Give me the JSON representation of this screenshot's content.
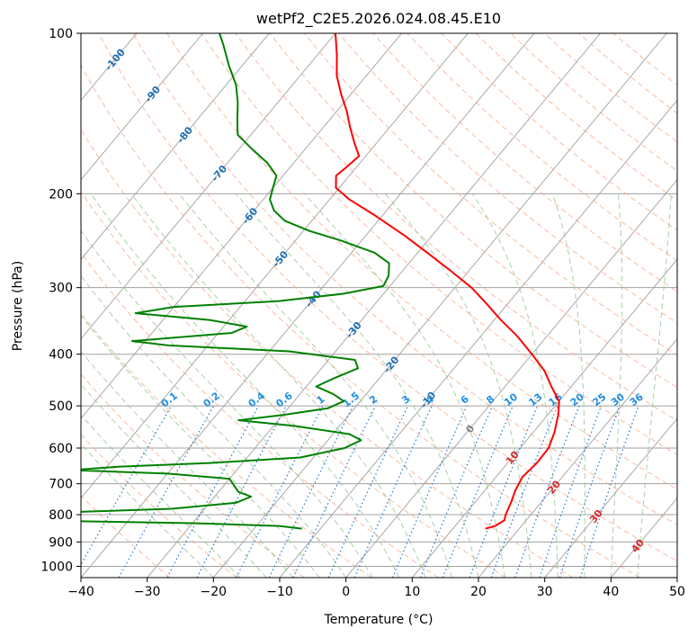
{
  "chart_data": {
    "type": "skew-t",
    "title": "wetPf2_C2E5.2026.024.08.45.E10",
    "xlabel": "Temperature (°C)",
    "ylabel": "Pressure (hPa)",
    "xlim": [
      -40,
      50
    ],
    "ylim": [
      1050,
      100
    ],
    "y_scale": "log",
    "grid": true,
    "x_ticks": [
      "−40",
      "−30",
      "−20",
      "−10",
      "0",
      "10",
      "20",
      "30",
      "40",
      "50"
    ],
    "y_ticks": [
      {
        "p": 100,
        "label": "100"
      },
      {
        "p": 200,
        "label": "200"
      },
      {
        "p": 300,
        "label": "300"
      },
      {
        "p": 400,
        "label": "400"
      },
      {
        "p": 500,
        "label": "500"
      },
      {
        "p": 600,
        "label": "600"
      },
      {
        "p": 700,
        "label": "700"
      },
      {
        "p": 800,
        "label": "800"
      },
      {
        "p": 900,
        "label": "900"
      },
      {
        "p": 1000,
        "label": "1000"
      }
    ],
    "colors": {
      "temperature": "#ff0000",
      "dewpoint": "#008000",
      "isotherm": "#a0a0a0",
      "dry_adiabat": "#f4a582",
      "moist_adiabat": "#92c592",
      "mixing_ratio": "#1f77d4",
      "iso_label": "#1f6fb4",
      "mr_label": "#1f8fe0",
      "warm_label": "#d62728",
      "zero_label": "#808080"
    },
    "series": [
      {
        "name": "",
        "values": [
          {
            "p": 850,
            "t": 14.9
          },
          {
            "p": 840,
            "t": 16.0
          },
          {
            "p": 820,
            "t": 16.7
          },
          {
            "p": 800,
            "t": 16.2
          },
          {
            "p": 760,
            "t": 15.5
          },
          {
            "p": 720,
            "t": 14.6
          },
          {
            "p": 680,
            "t": 14.0
          },
          {
            "p": 640,
            "t": 14.4
          },
          {
            "p": 600,
            "t": 14.3
          },
          {
            "p": 560,
            "t": 13.2
          },
          {
            "p": 520,
            "t": 11.6
          },
          {
            "p": 490,
            "t": 10.0
          },
          {
            "p": 460,
            "t": 7.0
          },
          {
            "p": 430,
            "t": 4.0
          },
          {
            "p": 400,
            "t": 0.0
          },
          {
            "p": 370,
            "t": -4.5
          },
          {
            "p": 345,
            "t": -9.0
          },
          {
            "p": 320,
            "t": -13.5
          },
          {
            "p": 300,
            "t": -17.5
          },
          {
            "p": 280,
            "t": -22.5
          },
          {
            "p": 260,
            "t": -28.0
          },
          {
            "p": 240,
            "t": -34.0
          },
          {
            "p": 220,
            "t": -41.0
          },
          {
            "p": 205,
            "t": -47.0
          },
          {
            "p": 195,
            "t": -50.5
          },
          {
            "p": 185,
            "t": -52.0
          },
          {
            "p": 178,
            "t": -51.5
          },
          {
            "p": 170,
            "t": -51.0
          },
          {
            "p": 160,
            "t": -53.5
          },
          {
            "p": 150,
            "t": -56.0
          },
          {
            "p": 140,
            "t": -58.5
          },
          {
            "p": 130,
            "t": -61.5
          },
          {
            "p": 120,
            "t": -64.5
          },
          {
            "p": 110,
            "t": -67.0
          },
          {
            "p": 100,
            "t": -70.0
          }
        ]
      },
      {
        "name": "",
        "values": [
          {
            "p": 850,
            "t": -12.8
          },
          {
            "p": 840,
            "t": -16.5
          },
          {
            "p": 830,
            "t": -30.0
          },
          {
            "p": 822,
            "t": -50.0
          },
          {
            "p": 810,
            "t": -65.0
          },
          {
            "p": 790,
            "t": -48.0
          },
          {
            "p": 780,
            "t": -35.0
          },
          {
            "p": 760,
            "t": -26.0
          },
          {
            "p": 740,
            "t": -24.5
          },
          {
            "p": 725,
            "t": -27.0
          },
          {
            "p": 705,
            "t": -28.5
          },
          {
            "p": 685,
            "t": -30.0
          },
          {
            "p": 670,
            "t": -40.0
          },
          {
            "p": 660,
            "t": -55.0
          },
          {
            "p": 650,
            "t": -48.0
          },
          {
            "p": 640,
            "t": -35.0
          },
          {
            "p": 625,
            "t": -22.0
          },
          {
            "p": 600,
            "t": -16.5
          },
          {
            "p": 580,
            "t": -15.0
          },
          {
            "p": 565,
            "t": -17.5
          },
          {
            "p": 545,
            "t": -27.0
          },
          {
            "p": 532,
            "t": -36.0
          },
          {
            "p": 520,
            "t": -30.0
          },
          {
            "p": 505,
            "t": -24.0
          },
          {
            "p": 490,
            "t": -22.5
          },
          {
            "p": 475,
            "t": -25.0
          },
          {
            "p": 460,
            "t": -28.5
          },
          {
            "p": 445,
            "t": -27.0
          },
          {
            "p": 425,
            "t": -24.5
          },
          {
            "p": 410,
            "t": -26.0
          },
          {
            "p": 395,
            "t": -37.0
          },
          {
            "p": 385,
            "t": -56.0
          },
          {
            "p": 378,
            "t": -62.0
          },
          {
            "p": 365,
            "t": -48.0
          },
          {
            "p": 355,
            "t": -46.5
          },
          {
            "p": 345,
            "t": -53.0
          },
          {
            "p": 335,
            "t": -65.0
          },
          {
            "p": 326,
            "t": -60.0
          },
          {
            "p": 318,
            "t": -45.0
          },
          {
            "p": 308,
            "t": -36.0
          },
          {
            "p": 298,
            "t": -31.0
          },
          {
            "p": 285,
            "t": -31.5
          },
          {
            "p": 270,
            "t": -33.0
          },
          {
            "p": 258,
            "t": -36.5
          },
          {
            "p": 245,
            "t": -43.0
          },
          {
            "p": 235,
            "t": -49.0
          },
          {
            "p": 225,
            "t": -54.0
          },
          {
            "p": 215,
            "t": -57.0
          },
          {
            "p": 205,
            "t": -59.0
          },
          {
            "p": 195,
            "t": -60.0
          },
          {
            "p": 185,
            "t": -61.0
          },
          {
            "p": 175,
            "t": -64.0
          },
          {
            "p": 165,
            "t": -68.0
          },
          {
            "p": 155,
            "t": -72.0
          },
          {
            "p": 145,
            "t": -74.0
          },
          {
            "p": 135,
            "t": -76.0
          },
          {
            "p": 125,
            "t": -78.5
          },
          {
            "p": 115,
            "t": -82.0
          },
          {
            "p": 105,
            "t": -85.5
          },
          {
            "p": 100,
            "t": -87.5
          }
        ]
      }
    ],
    "isotherm_labels": [
      {
        "text": "-100",
        "t": -100,
        "p": 112
      },
      {
        "text": "-90",
        "t": -90,
        "p": 130
      },
      {
        "text": "-80",
        "t": -80,
        "p": 155
      },
      {
        "text": "-70",
        "t": -70,
        "p": 183
      },
      {
        "text": "-60",
        "t": -60,
        "p": 220
      },
      {
        "text": "-50",
        "t": -50,
        "p": 265
      },
      {
        "text": "-40",
        "t": -40,
        "p": 315
      },
      {
        "text": "-30",
        "t": -30,
        "p": 360
      },
      {
        "text": "-20",
        "t": -20,
        "p": 418
      },
      {
        "text": "-10",
        "t": -10,
        "p": 487
      },
      {
        "text": "0",
        "t": 0,
        "p": 552
      },
      {
        "text": "10",
        "t": 10,
        "p": 625
      },
      {
        "text": "20",
        "t": 20,
        "p": 710
      },
      {
        "text": "30",
        "t": 30,
        "p": 805
      },
      {
        "text": "40",
        "t": 40,
        "p": 915
      }
    ],
    "mixing_ratio_labels": [
      "0.1",
      "0.2",
      "0.4",
      "0.6",
      "1",
      "1.5",
      "2",
      "3",
      "4",
      "6",
      "8",
      "10",
      "13",
      "16",
      "20",
      "25",
      "30",
      "36"
    ],
    "mixing_ratio_values": [
      0.1,
      0.2,
      0.4,
      0.6,
      1,
      1.5,
      2,
      3,
      4,
      6,
      8,
      10,
      13,
      16,
      20,
      25,
      30,
      36
    ],
    "mixing_ratio_label_pressure": 500
  }
}
